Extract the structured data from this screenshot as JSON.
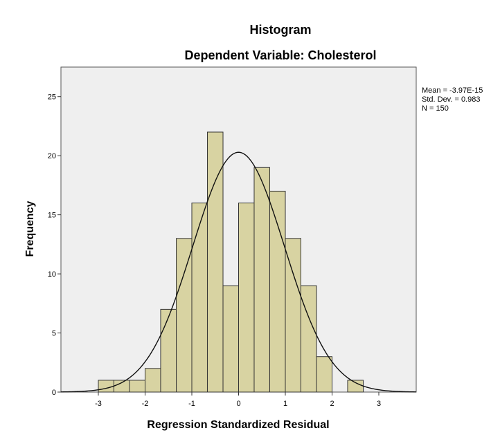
{
  "chart_data": {
    "type": "histogram",
    "title": "Histogram",
    "subtitle": "Dependent Variable: Cholesterol",
    "xlabel": "Regression Standardized Residual",
    "ylabel": "Frequency",
    "xlim": [
      -3.8,
      3.8
    ],
    "ylim": [
      0,
      27.5
    ],
    "x_ticks": [
      -3,
      -2,
      -1,
      0,
      1,
      2,
      3
    ],
    "x_tick_labels": [
      "-3",
      "-2",
      "-1",
      "0",
      "1",
      "2",
      "3"
    ],
    "y_ticks": [
      0,
      5,
      10,
      15,
      20,
      25
    ],
    "y_tick_labels": [
      "0",
      "5",
      "10",
      "15",
      "20",
      "25"
    ],
    "bins": [
      {
        "start": -3.0,
        "end": -2.667,
        "count": 1
      },
      {
        "start": -2.667,
        "end": -2.333,
        "count": 1
      },
      {
        "start": -2.333,
        "end": -2.0,
        "count": 1
      },
      {
        "start": -2.0,
        "end": -1.667,
        "count": 2
      },
      {
        "start": -1.667,
        "end": -1.333,
        "count": 7
      },
      {
        "start": -1.333,
        "end": -1.0,
        "count": 13
      },
      {
        "start": -1.0,
        "end": -0.667,
        "count": 16
      },
      {
        "start": -0.667,
        "end": -0.333,
        "count": 22
      },
      {
        "start": -0.333,
        "end": 0.0,
        "count": 9
      },
      {
        "start": 0.0,
        "end": 0.333,
        "count": 16
      },
      {
        "start": 0.333,
        "end": 0.667,
        "count": 19
      },
      {
        "start": 0.667,
        "end": 1.0,
        "count": 17
      },
      {
        "start": 1.0,
        "end": 1.333,
        "count": 13
      },
      {
        "start": 1.333,
        "end": 1.667,
        "count": 9
      },
      {
        "start": 1.667,
        "end": 2.0,
        "count": 3
      },
      {
        "start": 2.0,
        "end": 2.333,
        "count": 0
      },
      {
        "start": 2.333,
        "end": 2.667,
        "count": 1
      }
    ],
    "normal_curve": {
      "mean": 0,
      "std_dev": 0.983,
      "n": 150,
      "bin_width": 0.3333
    },
    "stats": {
      "mean": "Mean = -3.97E-15",
      "std_dev": "Std. Dev. = 0.983",
      "n": "N = 150"
    },
    "colors": {
      "bar_fill": "#d8d3a2",
      "bar_stroke": "#333333",
      "plot_background": "#efefef",
      "curve": "#111111"
    }
  }
}
